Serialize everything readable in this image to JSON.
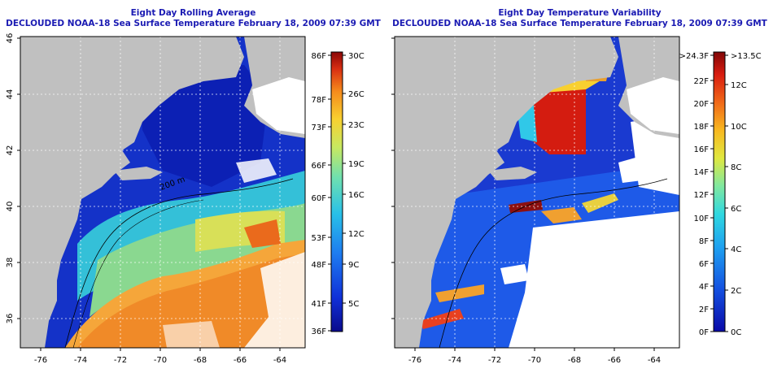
{
  "left": {
    "title": "Eight Day Rolling Average",
    "subtitle": "DECLOUDED NOAA-18 Sea Surface Temperature February 18, 2009 07:39 GMT",
    "colorbar": {
      "left_labels": [
        "86F",
        "78F",
        "73F",
        "66F",
        "60F",
        "53F",
        "48F",
        "41F",
        "36F"
      ],
      "right_labels": [
        "30C",
        "26C",
        "23C",
        "19C",
        "16C",
        "12C",
        "9C",
        "5C"
      ]
    }
  },
  "right": {
    "title": "Eight Day Temperature Variability",
    "subtitle": "DECLOUDED NOAA-18 Sea Surface Temperature February 18, 2009 07:39 GMT",
    "colorbar": {
      "left_labels": [
        ">24.3F",
        "22F",
        "20F",
        "18F",
        "16F",
        "14F",
        "12F",
        "10F",
        "8F",
        "6F",
        "4F",
        "2F",
        "0F"
      ],
      "right_labels": [
        ">13.5C",
        "12C",
        "10C",
        "8C",
        "6C",
        "4C",
        "2C",
        "0C"
      ]
    }
  },
  "axes": {
    "x_ticks": [
      "-76",
      "-74",
      "-72",
      "-70",
      "-68",
      "-66",
      "-64"
    ],
    "y_ticks": [
      "46",
      "44",
      "42",
      "40",
      "38",
      "36"
    ]
  },
  "map_labels": {
    "depth_contour": "200 m"
  },
  "colors": {
    "title": "#1b1bb3",
    "land": "#c0c0c0",
    "cloud": "#ffffff"
  }
}
